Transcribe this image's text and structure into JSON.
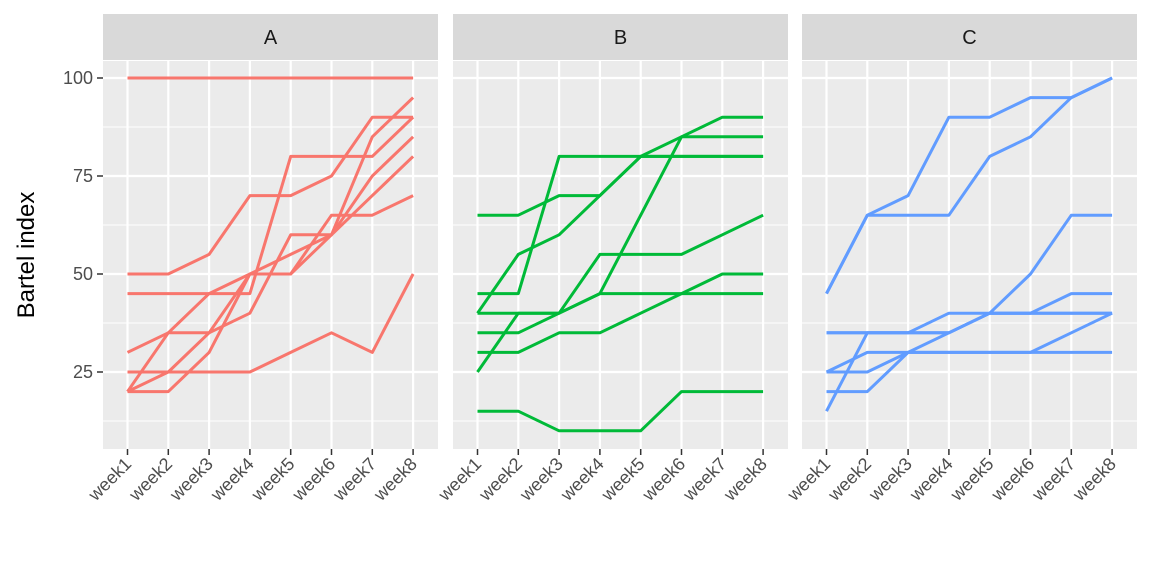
{
  "chart_data": {
    "type": "line",
    "ylabel": "Bartel index",
    "xlabel": "",
    "x": [
      "week1",
      "week2",
      "week3",
      "week4",
      "week5",
      "week6",
      "week7",
      "week8"
    ],
    "yticks": [
      25,
      50,
      75,
      100
    ],
    "ylim": [
      7,
      114
    ],
    "grid": true,
    "facets": [
      {
        "label": "A",
        "color": "#F8766D",
        "series": [
          {
            "values": [
              100,
              100,
              100,
              100,
              100,
              100,
              100,
              100
            ]
          },
          {
            "values": [
              50,
              50,
              55,
              70,
              70,
              75,
              90,
              90
            ]
          },
          {
            "values": [
              45,
              45,
              45,
              45,
              80,
              80,
              80,
              90
            ]
          },
          {
            "values": [
              30,
              35,
              45,
              50,
              50,
              65,
              65,
              70
            ]
          },
          {
            "values": [
              20,
              35,
              35,
              40,
              60,
              60,
              85,
              95
            ]
          },
          {
            "values": [
              20,
              25,
              35,
              50,
              55,
              60,
              75,
              85
            ]
          },
          {
            "values": [
              20,
              20,
              30,
              50,
              50,
              60,
              70,
              80
            ]
          },
          {
            "values": [
              25,
              25,
              25,
              25,
              30,
              35,
              30,
              50
            ]
          }
        ]
      },
      {
        "label": "B",
        "color": "#00BA38",
        "series": [
          {
            "values": [
              65,
              65,
              70,
              70,
              80,
              85,
              85,
              85
            ]
          },
          {
            "values": [
              40,
              55,
              60,
              70,
              80,
              80,
              80,
              80
            ]
          },
          {
            "values": [
              45,
              45,
              80,
              80,
              80,
              80,
              80,
              80
            ]
          },
          {
            "values": [
              40,
              40,
              40,
              45,
              65,
              85,
              90,
              90
            ]
          },
          {
            "values": [
              25,
              40,
              40,
              55,
              55,
              55,
              60,
              65
            ]
          },
          {
            "values": [
              35,
              35,
              40,
              45,
              45,
              45,
              45,
              45
            ]
          },
          {
            "values": [
              30,
              30,
              35,
              35,
              40,
              45,
              50,
              50
            ]
          },
          {
            "values": [
              15,
              15,
              10,
              10,
              10,
              20,
              20,
              20
            ]
          }
        ]
      },
      {
        "label": "C",
        "color": "#619CFF",
        "series": [
          {
            "values": [
              45,
              65,
              70,
              90,
              90,
              95,
              95,
              100
            ]
          },
          {
            "values": [
              45,
              65,
              65,
              65,
              80,
              85,
              95,
              100
            ]
          },
          {
            "values": [
              20,
              20,
              30,
              35,
              40,
              50,
              65,
              65
            ]
          },
          {
            "values": [
              35,
              35,
              35,
              40,
              40,
              40,
              45,
              45
            ]
          },
          {
            "values": [
              35,
              35,
              35,
              35,
              40,
              40,
              40,
              40
            ]
          },
          {
            "values": [
              25,
              30,
              30,
              30,
              30,
              30,
              30,
              30
            ]
          },
          {
            "values": [
              25,
              25,
              30,
              30,
              30,
              30,
              35,
              40
            ]
          },
          {
            "values": [
              15,
              35,
              35,
              35,
              40,
              40,
              40,
              40
            ]
          }
        ]
      }
    ]
  }
}
